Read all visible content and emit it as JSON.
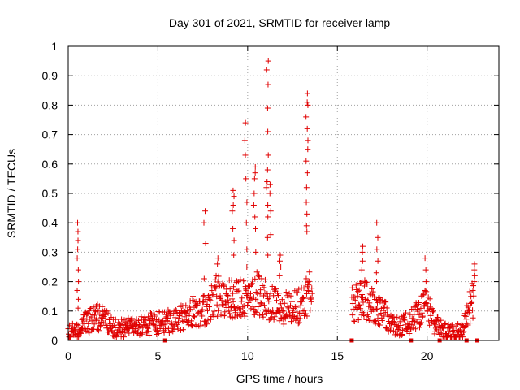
{
  "chart_data": {
    "type": "scatter",
    "title": "Day 301 of 2021, SRMTID for receiver lamp",
    "xlabel": "GPS time / hours",
    "ylabel": "SRMTID / TECUs",
    "xlim": [
      0,
      24
    ],
    "ylim": [
      0,
      1
    ],
    "x_ticks": [
      0,
      5,
      10,
      15,
      20
    ],
    "y_ticks": [
      0,
      0.1,
      0.2,
      0.3,
      0.4,
      0.5,
      0.6,
      0.7,
      0.8,
      0.9,
      1
    ],
    "x_tick_labels": [
      "0",
      "5",
      "10",
      "15",
      "20"
    ],
    "y_tick_labels": [
      "0",
      "0.1",
      "0.2",
      "0.3",
      "0.4",
      "0.5",
      "0.6",
      "0.7",
      "0.8",
      "0.9",
      "1"
    ],
    "grid": true,
    "marker_color": "#e00000",
    "series": [
      {
        "name": "SRMTID",
        "marker": "plus",
        "baseline_profile": [
          [
            0.0,
            0.03
          ],
          [
            0.5,
            0.03
          ],
          [
            1.0,
            0.06
          ],
          [
            1.5,
            0.08
          ],
          [
            2.0,
            0.07
          ],
          [
            2.5,
            0.04
          ],
          [
            3.0,
            0.04
          ],
          [
            4.0,
            0.05
          ],
          [
            5.0,
            0.06
          ],
          [
            6.0,
            0.07
          ],
          [
            7.0,
            0.1
          ],
          [
            7.5,
            0.1
          ],
          [
            8.0,
            0.13
          ],
          [
            8.5,
            0.16
          ],
          [
            9.0,
            0.14
          ],
          [
            9.5,
            0.15
          ],
          [
            10.0,
            0.13
          ],
          [
            10.5,
            0.16
          ],
          [
            11.0,
            0.14
          ],
          [
            11.5,
            0.12
          ],
          [
            12.0,
            0.11
          ],
          [
            12.5,
            0.11
          ],
          [
            13.0,
            0.12
          ],
          [
            13.5,
            0.17
          ],
          [
            13.6,
            0.17
          ]
        ],
        "baseline_profile_late": [
          [
            15.8,
            0.12
          ],
          [
            16.5,
            0.14
          ],
          [
            17.0,
            0.12
          ],
          [
            17.5,
            0.1
          ],
          [
            18.0,
            0.06
          ],
          [
            18.5,
            0.05
          ],
          [
            19.0,
            0.06
          ],
          [
            19.5,
            0.09
          ],
          [
            20.0,
            0.12
          ],
          [
            20.5,
            0.05
          ],
          [
            21.0,
            0.03
          ],
          [
            21.5,
            0.03
          ],
          [
            22.0,
            0.03
          ],
          [
            22.3,
            0.1
          ],
          [
            22.6,
            0.15
          ]
        ],
        "peaks": [
          {
            "x": 0.55,
            "values": [
              0.4,
              0.37,
              0.34,
              0.31,
              0.28,
              0.24,
              0.2,
              0.17,
              0.14,
              0.11
            ]
          },
          {
            "x": 7.6,
            "values": [
              0.44,
              0.4,
              0.33,
              0.21
            ]
          },
          {
            "x": 8.3,
            "values": [
              0.28,
              0.26,
              0.22
            ]
          },
          {
            "x": 9.2,
            "values": [
              0.51,
              0.49,
              0.46,
              0.44,
              0.38,
              0.34,
              0.29
            ]
          },
          {
            "x": 9.9,
            "values": [
              0.74,
              0.68,
              0.63,
              0.55,
              0.47,
              0.4,
              0.31,
              0.25
            ]
          },
          {
            "x": 10.4,
            "values": [
              0.59,
              0.57,
              0.55,
              0.5,
              0.46,
              0.42,
              0.38,
              0.3
            ]
          },
          {
            "x": 11.1,
            "values": [
              0.95,
              0.92,
              0.87,
              0.79,
              0.71,
              0.63,
              0.58,
              0.54,
              0.52,
              0.46,
              0.42,
              0.35,
              0.29
            ]
          },
          {
            "x": 11.3,
            "values": [
              0.53,
              0.5,
              0.44,
              0.36
            ]
          },
          {
            "x": 11.8,
            "values": [
              0.29,
              0.27,
              0.25,
              0.22
            ]
          },
          {
            "x": 13.3,
            "values": [
              0.84,
              0.81,
              0.8,
              0.76,
              0.72,
              0.68,
              0.65,
              0.61,
              0.57,
              0.52,
              0.47,
              0.43,
              0.39,
              0.37
            ]
          },
          {
            "x": 16.4,
            "values": [
              0.32,
              0.3,
              0.27,
              0.24,
              0.2
            ]
          },
          {
            "x": 17.2,
            "values": [
              0.4,
              0.35,
              0.31,
              0.27,
              0.23,
              0.2
            ]
          },
          {
            "x": 19.9,
            "values": [
              0.28,
              0.24,
              0.2,
              0.17
            ]
          },
          {
            "x": 22.6,
            "values": [
              0.26,
              0.24,
              0.22,
              0.2,
              0.17
            ]
          }
        ],
        "zero_markers": [
          5.4,
          15.8,
          19.1,
          20.7,
          22.2,
          22.8
        ]
      }
    ]
  }
}
